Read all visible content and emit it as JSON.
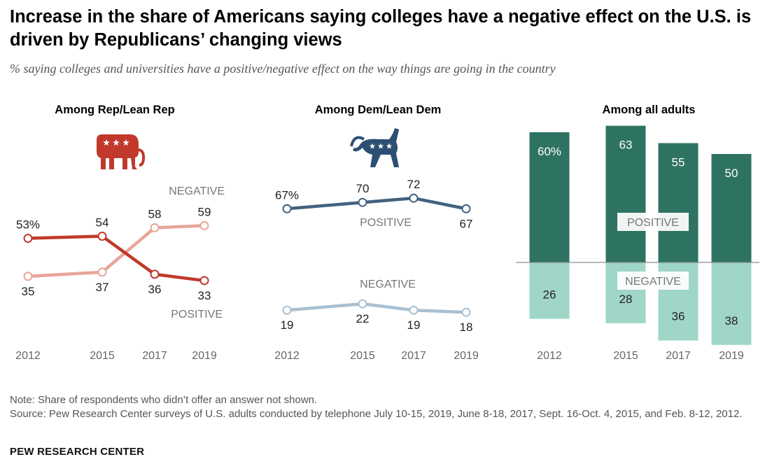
{
  "title": "Increase in the share of Americans saying colleges have a negative effect on the U.S. is driven by Republicans’ changing views",
  "subtitle": "% saying colleges and universities have a positive/negative effect on the way things are going in the country",
  "note": "Note: Share of respondents who didn’t offer an answer not shown.",
  "source": "Source: Pew Research Center surveys of U.S. adults conducted by telephone July 10-15, 2019, June 8-18, 2017, Sept. 16-Oct. 4, 2015, and Feb. 8-12, 2012.",
  "brand": "PEW RESEARCH CENTER",
  "colors": {
    "rep_negative": "#e8a598",
    "rep_positive": "#c0392b",
    "dem_positive": "#41627f",
    "dem_negative": "#a8c0d2",
    "all_positive": "#2e7362",
    "all_negative": "#9fd6c7",
    "rep_icon": "#c0392b",
    "dem_icon": "#2d4f73"
  },
  "icons": {
    "rep": "elephant-icon",
    "dem": "donkey-icon"
  },
  "chart_data": [
    {
      "type": "line",
      "title": "Among Rep/Lean Rep",
      "x": [
        2012,
        2015,
        2017,
        2019
      ],
      "tick_labels": [
        "2012",
        "2015",
        "2017",
        "2019"
      ],
      "ylim": [
        0,
        100
      ],
      "series": [
        {
          "name": "NEGATIVE",
          "values": [
            35,
            37,
            58,
            59
          ],
          "labels": [
            "35",
            "37",
            "58",
            "59"
          ]
        },
        {
          "name": "POSITIVE",
          "values": [
            53,
            54,
            36,
            33
          ],
          "labels": [
            "53%",
            "54",
            "36",
            "33"
          ]
        }
      ]
    },
    {
      "type": "line",
      "title": "Among Dem/Lean Dem",
      "x": [
        2012,
        2015,
        2017,
        2019
      ],
      "tick_labels": [
        "2012",
        "2015",
        "2017",
        "2019"
      ],
      "ylim": [
        0,
        100
      ],
      "series": [
        {
          "name": "POSITIVE",
          "values": [
            67,
            70,
            72,
            67
          ],
          "labels": [
            "67%",
            "70",
            "72",
            "67"
          ]
        },
        {
          "name": "NEGATIVE",
          "values": [
            19,
            22,
            19,
            18
          ],
          "labels": [
            "19",
            "22",
            "19",
            "18"
          ]
        }
      ]
    },
    {
      "type": "bar",
      "title": "Among all adults",
      "categories": [
        "2012",
        "2015",
        "2017",
        "2019"
      ],
      "x": [
        2012,
        2015,
        2017,
        2019
      ],
      "series": [
        {
          "name": "POSITIVE",
          "values": [
            60,
            63,
            55,
            50
          ],
          "labels": [
            "60%",
            "63",
            "55",
            "50"
          ]
        },
        {
          "name": "NEGATIVE",
          "values": [
            26,
            28,
            36,
            38
          ],
          "labels": [
            "26",
            "28",
            "36",
            "38"
          ]
        }
      ]
    }
  ]
}
